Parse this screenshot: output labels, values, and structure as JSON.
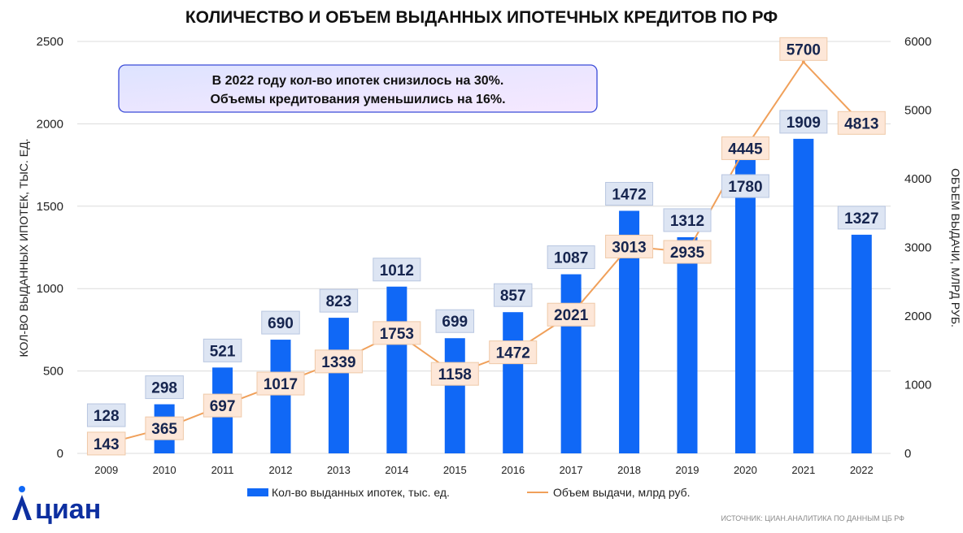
{
  "chart_data": {
    "type": "bar+line",
    "title": "КОЛИЧЕСТВО И ОБЪЕМ ВЫДАННЫХ ИПОТЕЧНЫХ КРЕДИТОВ ПО РФ",
    "categories": [
      "2009",
      "2010",
      "2011",
      "2012",
      "2013",
      "2014",
      "2015",
      "2016",
      "2017",
      "2018",
      "2019",
      "2020",
      "2021",
      "2022"
    ],
    "series": [
      {
        "name": "Кол-во выданных ипотек, тыс. ед.",
        "type": "bar",
        "axis": "left",
        "color": "#1068f6",
        "values": [
          128,
          298,
          521,
          690,
          823,
          1012,
          699,
          857,
          1087,
          1472,
          1312,
          1780,
          1909,
          1327
        ]
      },
      {
        "name": "Объем выдачи, млрд руб.",
        "type": "line",
        "axis": "right",
        "color": "#f0a05a",
        "values": [
          143,
          365,
          697,
          1017,
          1339,
          1753,
          1158,
          1472,
          2021,
          3013,
          2935,
          4445,
          5700,
          4813
        ]
      }
    ],
    "y_left": {
      "label": "КОЛ-ВО ВЫДАННЫХ ИПОТЕК, ТЫС. ЕД.",
      "min": 0,
      "max": 2500,
      "ticks": [
        0,
        500,
        1000,
        1500,
        2000,
        2500
      ]
    },
    "y_right": {
      "label": "ОБЪЕМ ВЫДАЧИ, МЛРД РУБ.",
      "min": 0,
      "max": 6000,
      "ticks": [
        0,
        1000,
        2000,
        3000,
        4000,
        5000,
        6000
      ]
    },
    "grid": "horizontal",
    "legend": "bottom",
    "annotation": [
      "В 2022 году кол-во ипотек снизилось на 30%.",
      "Объемы кредитования уменьшились на 16%."
    ]
  },
  "brand": {
    "logo_text": "циан",
    "icon": "location-pin-person-icon",
    "color": "#0d2fa0"
  },
  "source": "ИСТОЧНИК: ЦИАН.АНАЛИТИКА ПО ДАННЫМ ЦБ РФ"
}
